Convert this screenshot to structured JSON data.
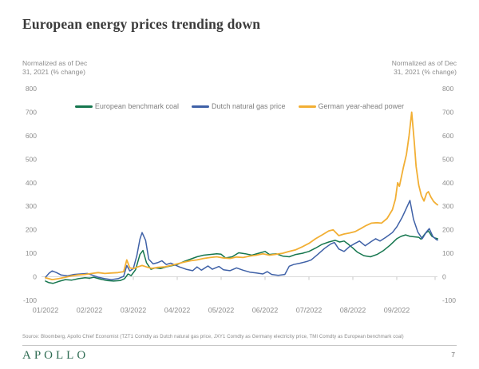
{
  "page": {
    "title": "European energy prices trending down",
    "axis_note_left_line1": "Normalized as of Dec",
    "axis_note_left_line2": "31, 2021 (% change)",
    "axis_note_right_line1": "Normalized as of Dec",
    "axis_note_right_line2": "31, 2021 (% change)",
    "source": "Source: Bloomberg, Apollo Chief Economist (TZT1 Comdty as Dutch natural gas price, JXY1 Comdty as Germany electricity price, TMI Comdty as European benchmark coal)",
    "footer_logo": "APOLLO",
    "page_number": "7"
  },
  "colors": {
    "coal": "#15764e",
    "gas": "#3f61a7",
    "power": "#f2af34",
    "axis_text": "#8c8c8c",
    "zero_line": "#d9d9d9",
    "tick": "#c9c9c9",
    "title_text": "#3a3a3a",
    "logo_green": "#2e6b52"
  },
  "chart_data": {
    "type": "line",
    "title": "European energy prices trending down",
    "subtitle": "Normalized as of Dec 31, 2021 (% change)",
    "ylabel": "Normalized as of Dec 31, 2021 (% change)",
    "xlabel": "",
    "ylim": [
      -100,
      800
    ],
    "y_ticks": [
      800,
      700,
      600,
      500,
      400,
      300,
      200,
      100,
      0,
      -100
    ],
    "y_axis_sides": "both",
    "x_tick_labels": [
      "01/2022",
      "02/2022",
      "03/2022",
      "04/2022",
      "05/2022",
      "06/2022",
      "07/2022",
      "08/2022",
      "09/2022"
    ],
    "x_unit_months_since_jan2022": true,
    "x_range_months": [
      0,
      8.93
    ],
    "grid": "zero-line-only",
    "legend_position": "top",
    "series": [
      {
        "name": "European benchmark coal",
        "color": "#15764e",
        "points": [
          [
            0.0,
            -18
          ],
          [
            0.08,
            -25
          ],
          [
            0.17,
            -28
          ],
          [
            0.3,
            -20
          ],
          [
            0.45,
            -12
          ],
          [
            0.6,
            -14
          ],
          [
            0.75,
            -8
          ],
          [
            0.9,
            -4
          ],
          [
            1.0,
            -6
          ],
          [
            1.1,
            -2
          ],
          [
            1.25,
            -10
          ],
          [
            1.4,
            -16
          ],
          [
            1.55,
            -18
          ],
          [
            1.7,
            -16
          ],
          [
            1.8,
            -8
          ],
          [
            1.88,
            12
          ],
          [
            1.95,
            5
          ],
          [
            2.05,
            30
          ],
          [
            2.15,
            95
          ],
          [
            2.22,
            112
          ],
          [
            2.3,
            60
          ],
          [
            2.4,
            32
          ],
          [
            2.5,
            38
          ],
          [
            2.62,
            35
          ],
          [
            2.75,
            42
          ],
          [
            2.9,
            48
          ],
          [
            3.0,
            52
          ],
          [
            3.15,
            65
          ],
          [
            3.3,
            75
          ],
          [
            3.45,
            85
          ],
          [
            3.6,
            92
          ],
          [
            3.75,
            95
          ],
          [
            3.9,
            98
          ],
          [
            4.0,
            96
          ],
          [
            4.1,
            80
          ],
          [
            4.25,
            85
          ],
          [
            4.4,
            102
          ],
          [
            4.55,
            98
          ],
          [
            4.7,
            92
          ],
          [
            4.85,
            100
          ],
          [
            5.0,
            108
          ],
          [
            5.1,
            95
          ],
          [
            5.25,
            98
          ],
          [
            5.4,
            88
          ],
          [
            5.55,
            85
          ],
          [
            5.7,
            95
          ],
          [
            5.85,
            100
          ],
          [
            6.0,
            108
          ],
          [
            6.15,
            122
          ],
          [
            6.3,
            138
          ],
          [
            6.45,
            148
          ],
          [
            6.6,
            155
          ],
          [
            6.7,
            148
          ],
          [
            6.8,
            152
          ],
          [
            6.9,
            138
          ],
          [
            7.0,
            122
          ],
          [
            7.1,
            105
          ],
          [
            7.25,
            90
          ],
          [
            7.4,
            85
          ],
          [
            7.55,
            95
          ],
          [
            7.7,
            112
          ],
          [
            7.85,
            135
          ],
          [
            8.0,
            162
          ],
          [
            8.1,
            172
          ],
          [
            8.2,
            178
          ],
          [
            8.3,
            172
          ],
          [
            8.4,
            170
          ],
          [
            8.5,
            168
          ],
          [
            8.55,
            160
          ],
          [
            8.65,
            185
          ],
          [
            8.72,
            195
          ],
          [
            8.8,
            172
          ],
          [
            8.87,
            165
          ],
          [
            8.93,
            162
          ]
        ]
      },
      {
        "name": "Dutch natural gas price",
        "color": "#3f61a7",
        "points": [
          [
            0.0,
            -2
          ],
          [
            0.08,
            15
          ],
          [
            0.15,
            25
          ],
          [
            0.25,
            18
          ],
          [
            0.35,
            8
          ],
          [
            0.5,
            4
          ],
          [
            0.65,
            10
          ],
          [
            0.8,
            12
          ],
          [
            0.95,
            14
          ],
          [
            1.05,
            8
          ],
          [
            1.2,
            -2
          ],
          [
            1.35,
            -8
          ],
          [
            1.5,
            -12
          ],
          [
            1.65,
            -8
          ],
          [
            1.78,
            2
          ],
          [
            1.85,
            48
          ],
          [
            1.92,
            25
          ],
          [
            2.0,
            35
          ],
          [
            2.08,
            90
          ],
          [
            2.15,
            160
          ],
          [
            2.2,
            188
          ],
          [
            2.28,
            155
          ],
          [
            2.35,
            75
          ],
          [
            2.45,
            55
          ],
          [
            2.55,
            60
          ],
          [
            2.65,
            68
          ],
          [
            2.75,
            52
          ],
          [
            2.85,
            58
          ],
          [
            2.95,
            50
          ],
          [
            3.05,
            42
          ],
          [
            3.2,
            32
          ],
          [
            3.35,
            26
          ],
          [
            3.45,
            42
          ],
          [
            3.55,
            28
          ],
          [
            3.7,
            46
          ],
          [
            3.8,
            32
          ],
          [
            3.95,
            44
          ],
          [
            4.05,
            30
          ],
          [
            4.2,
            26
          ],
          [
            4.35,
            38
          ],
          [
            4.5,
            28
          ],
          [
            4.65,
            20
          ],
          [
            4.8,
            16
          ],
          [
            4.95,
            12
          ],
          [
            5.05,
            22
          ],
          [
            5.15,
            10
          ],
          [
            5.3,
            6
          ],
          [
            5.45,
            10
          ],
          [
            5.55,
            45
          ],
          [
            5.65,
            52
          ],
          [
            5.8,
            58
          ],
          [
            5.95,
            65
          ],
          [
            6.05,
            72
          ],
          [
            6.2,
            95
          ],
          [
            6.35,
            120
          ],
          [
            6.5,
            140
          ],
          [
            6.58,
            146
          ],
          [
            6.68,
            118
          ],
          [
            6.8,
            108
          ],
          [
            6.92,
            128
          ],
          [
            7.05,
            142
          ],
          [
            7.15,
            152
          ],
          [
            7.28,
            132
          ],
          [
            7.42,
            150
          ],
          [
            7.52,
            162
          ],
          [
            7.62,
            152
          ],
          [
            7.75,
            168
          ],
          [
            7.9,
            188
          ],
          [
            8.0,
            212
          ],
          [
            8.12,
            252
          ],
          [
            8.22,
            292
          ],
          [
            8.3,
            325
          ],
          [
            8.38,
            245
          ],
          [
            8.48,
            190
          ],
          [
            8.58,
            162
          ],
          [
            8.68,
            192
          ],
          [
            8.74,
            205
          ],
          [
            8.82,
            172
          ],
          [
            8.9,
            158
          ],
          [
            8.93,
            156
          ]
        ]
      },
      {
        "name": "German year-ahead power",
        "color": "#f2af34",
        "points": [
          [
            0.0,
            -4
          ],
          [
            0.15,
            -12
          ],
          [
            0.3,
            -8
          ],
          [
            0.45,
            -2
          ],
          [
            0.6,
            4
          ],
          [
            0.75,
            8
          ],
          [
            0.9,
            10
          ],
          [
            1.05,
            14
          ],
          [
            1.2,
            18
          ],
          [
            1.35,
            14
          ],
          [
            1.5,
            16
          ],
          [
            1.65,
            18
          ],
          [
            1.78,
            22
          ],
          [
            1.85,
            72
          ],
          [
            1.92,
            38
          ],
          [
            2.0,
            35
          ],
          [
            2.1,
            42
          ],
          [
            2.2,
            48
          ],
          [
            2.3,
            42
          ],
          [
            2.42,
            36
          ],
          [
            2.55,
            40
          ],
          [
            2.7,
            42
          ],
          [
            2.85,
            48
          ],
          [
            3.0,
            55
          ],
          [
            3.15,
            62
          ],
          [
            3.3,
            68
          ],
          [
            3.45,
            72
          ],
          [
            3.6,
            78
          ],
          [
            3.75,
            82
          ],
          [
            3.9,
            85
          ],
          [
            4.05,
            80
          ],
          [
            4.2,
            78
          ],
          [
            4.35,
            84
          ],
          [
            4.5,
            82
          ],
          [
            4.65,
            88
          ],
          [
            4.8,
            92
          ],
          [
            4.95,
            98
          ],
          [
            5.1,
            92
          ],
          [
            5.25,
            96
          ],
          [
            5.4,
            100
          ],
          [
            5.55,
            108
          ],
          [
            5.7,
            115
          ],
          [
            5.85,
            128
          ],
          [
            6.0,
            142
          ],
          [
            6.15,
            162
          ],
          [
            6.3,
            178
          ],
          [
            6.45,
            195
          ],
          [
            6.55,
            200
          ],
          [
            6.68,
            175
          ],
          [
            6.8,
            182
          ],
          [
            6.92,
            186
          ],
          [
            7.05,
            192
          ],
          [
            7.18,
            205
          ],
          [
            7.3,
            218
          ],
          [
            7.42,
            228
          ],
          [
            7.55,
            230
          ],
          [
            7.65,
            228
          ],
          [
            7.78,
            248
          ],
          [
            7.9,
            285
          ],
          [
            7.97,
            330
          ],
          [
            8.02,
            400
          ],
          [
            8.06,
            385
          ],
          [
            8.15,
            465
          ],
          [
            8.22,
            520
          ],
          [
            8.28,
            600
          ],
          [
            8.34,
            700
          ],
          [
            8.4,
            570
          ],
          [
            8.44,
            470
          ],
          [
            8.5,
            390
          ],
          [
            8.56,
            345
          ],
          [
            8.62,
            322
          ],
          [
            8.68,
            355
          ],
          [
            8.72,
            362
          ],
          [
            8.78,
            338
          ],
          [
            8.84,
            320
          ],
          [
            8.9,
            310
          ],
          [
            8.93,
            306
          ]
        ]
      }
    ]
  }
}
